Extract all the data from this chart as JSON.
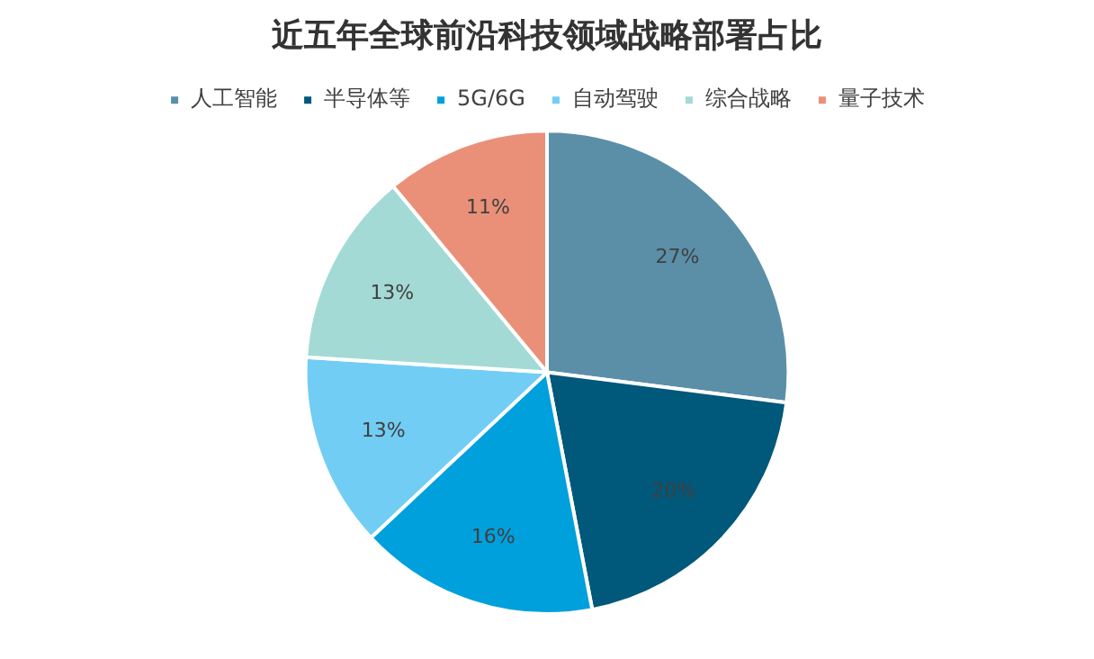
{
  "chart_data": {
    "type": "pie",
    "title": "近五年全球前沿科技领域战略部署占比",
    "categories": [
      "人工智能",
      "半导体等",
      "5G/6G",
      "自动驾驶",
      "综合战略",
      "量子技术"
    ],
    "values": [
      27,
      20,
      16,
      13,
      13,
      11
    ],
    "colors": [
      "#5b8fa8",
      "#00587a",
      "#00a0dc",
      "#72cdf4",
      "#a4dad5",
      "#ea9079"
    ],
    "value_labels": [
      "27%",
      "20%",
      "16%",
      "13%",
      "13%",
      "11%"
    ],
    "legend": "top"
  }
}
